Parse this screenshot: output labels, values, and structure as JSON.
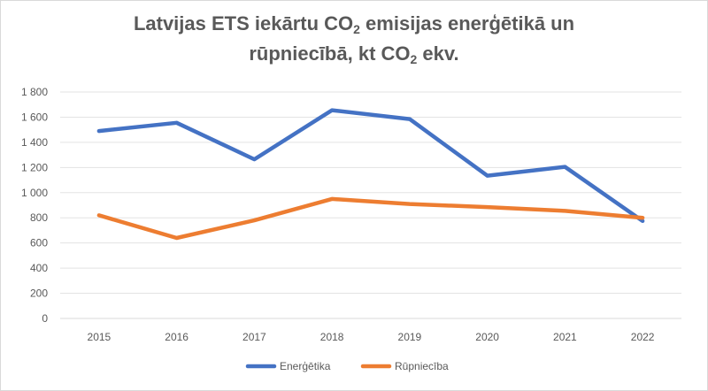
{
  "chart_data": {
    "type": "line",
    "title_parts": {
      "a": "Latvijas ETS iekārtu CO",
      "a_sub": "2",
      "b": " emisijas enerģētikā un",
      "c": "rūpniecībā, kt CO",
      "c_sub": "2",
      "d": " ekv."
    },
    "categories": [
      "2015",
      "2016",
      "2017",
      "2018",
      "2019",
      "2020",
      "2021",
      "2022"
    ],
    "series": [
      {
        "name": "Enerģētika",
        "color": "#4472C4",
        "values": [
          1490,
          1555,
          1265,
          1655,
          1585,
          1135,
          1205,
          775
        ]
      },
      {
        "name": "Rūpniecība",
        "color": "#ED7D31",
        "values": [
          820,
          640,
          780,
          950,
          910,
          885,
          855,
          800
        ]
      }
    ],
    "ylim": [
      0,
      1800
    ],
    "yticks": [
      "0",
      "200",
      "400",
      "600",
      "800",
      "1 000",
      "1 200",
      "1 400",
      "1 600",
      "1 800"
    ],
    "grid": true,
    "legend_position": "bottom"
  }
}
